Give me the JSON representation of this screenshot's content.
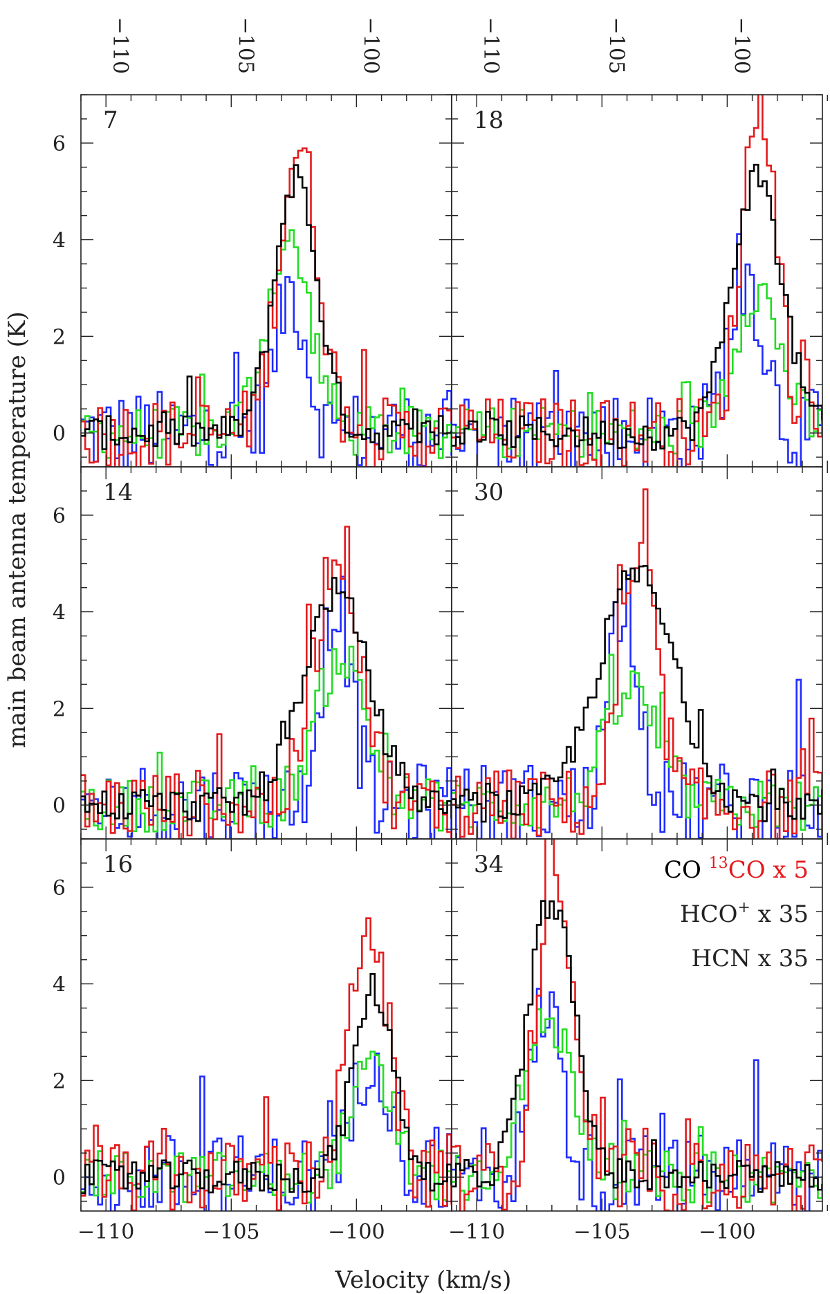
{
  "chart_data": {
    "type": "line",
    "xlabel": "Velocity (km/s)",
    "ylabel": "main beam antenna temperature (K)",
    "ylim": [
      -0.7,
      7.0
    ],
    "y_ticks": [
      0,
      2,
      4,
      6
    ],
    "columns": [
      {
        "xlim": [
          -111,
          -96.2
        ],
        "x_ticks": [
          -110,
          -105,
          -100
        ],
        "x_tick_labels": [
          "−110",
          "−105",
          "−100"
        ]
      },
      {
        "xlim": [
          -111,
          -96.2
        ],
        "x_ticks": [
          -110,
          -105,
          -100
        ],
        "x_tick_labels": [
          "−110",
          "−105",
          "−100"
        ]
      }
    ],
    "colors": {
      "CO": "#000000",
      "13CO": "#e41a1c",
      "HCO+": "#22dd22",
      "HCN": "#1f2bff"
    },
    "legend": {
      "placement": "top-right of panel 34",
      "entries": [
        {
          "series": "CO",
          "text": "CO"
        },
        {
          "series": "13CO",
          "sup": "13",
          "text": "CO x 5"
        },
        {
          "series": "HCO+",
          "text": "HCO",
          "sup_after": "+",
          "text_after": " x 35"
        },
        {
          "series": "HCN",
          "text": "HCN x 35"
        }
      ]
    },
    "panels": [
      {
        "label": "7",
        "row": 0,
        "col": 0,
        "lines": [
          {
            "series": "CO",
            "center": -102.5,
            "amp": 5.3,
            "width": 0.85
          },
          {
            "series": "13CO",
            "center": -102.4,
            "amp": 5.9,
            "width": 0.8
          },
          {
            "series": "HCO+",
            "center": -102.8,
            "amp": 3.9,
            "width": 0.9
          },
          {
            "series": "HCN",
            "center": -102.7,
            "amp": 3.0,
            "width": 0.6
          }
        ]
      },
      {
        "label": "18",
        "row": 0,
        "col": 1,
        "lines": [
          {
            "series": "CO",
            "center": -98.9,
            "amp": 5.3,
            "width": 1.0
          },
          {
            "series": "13CO",
            "center": -98.8,
            "amp": 6.9,
            "width": 0.7
          },
          {
            "series": "HCO+",
            "center": -98.9,
            "amp": 3.0,
            "width": 0.9
          },
          {
            "series": "HCN",
            "center": -99.3,
            "amp": 3.2,
            "width": 0.7
          }
        ]
      },
      {
        "label": "14",
        "row": 1,
        "col": 0,
        "lines": [
          {
            "series": "CO",
            "center": -100.9,
            "amp": 4.4,
            "width": 1.3
          },
          {
            "series": "13CO",
            "center": -100.8,
            "amp": 5.4,
            "width": 0.9
          },
          {
            "series": "HCO+",
            "center": -100.7,
            "amp": 3.1,
            "width": 1.0
          },
          {
            "series": "HCN",
            "center": -100.9,
            "amp": 4.3,
            "width": 0.6
          }
        ]
      },
      {
        "label": "30",
        "row": 1,
        "col": 1,
        "lines": [
          {
            "series": "CO",
            "center": -103.7,
            "amp": 4.8,
            "width": 1.5
          },
          {
            "series": "13CO",
            "center": -103.6,
            "amp": 4.9,
            "width": 0.75
          },
          {
            "series": "HCO+",
            "center": -103.9,
            "amp": 2.4,
            "width": 1.0
          },
          {
            "series": "HCN",
            "center": -104.2,
            "amp": 4.4,
            "width": 0.6
          }
        ]
      },
      {
        "label": "16",
        "row": 2,
        "col": 0,
        "lines": [
          {
            "series": "CO",
            "center": -99.4,
            "amp": 3.9,
            "width": 0.8
          },
          {
            "series": "13CO",
            "center": -99.6,
            "amp": 5.4,
            "width": 0.75
          },
          {
            "series": "HCO+",
            "center": -99.5,
            "amp": 2.2,
            "width": 0.8
          },
          {
            "series": "HCN",
            "center": -99.4,
            "amp": 2.7,
            "width": 0.7
          }
        ]
      },
      {
        "label": "34",
        "row": 2,
        "col": 1,
        "lines": [
          {
            "series": "CO",
            "center": -107.1,
            "amp": 5.8,
            "width": 0.9
          },
          {
            "series": "13CO",
            "center": -107.0,
            "amp": 6.6,
            "width": 0.65
          },
          {
            "series": "HCO+",
            "center": -107.2,
            "amp": 3.2,
            "width": 1.0
          },
          {
            "series": "HCN",
            "center": -107.3,
            "amp": 3.6,
            "width": 0.6
          }
        ]
      }
    ]
  }
}
